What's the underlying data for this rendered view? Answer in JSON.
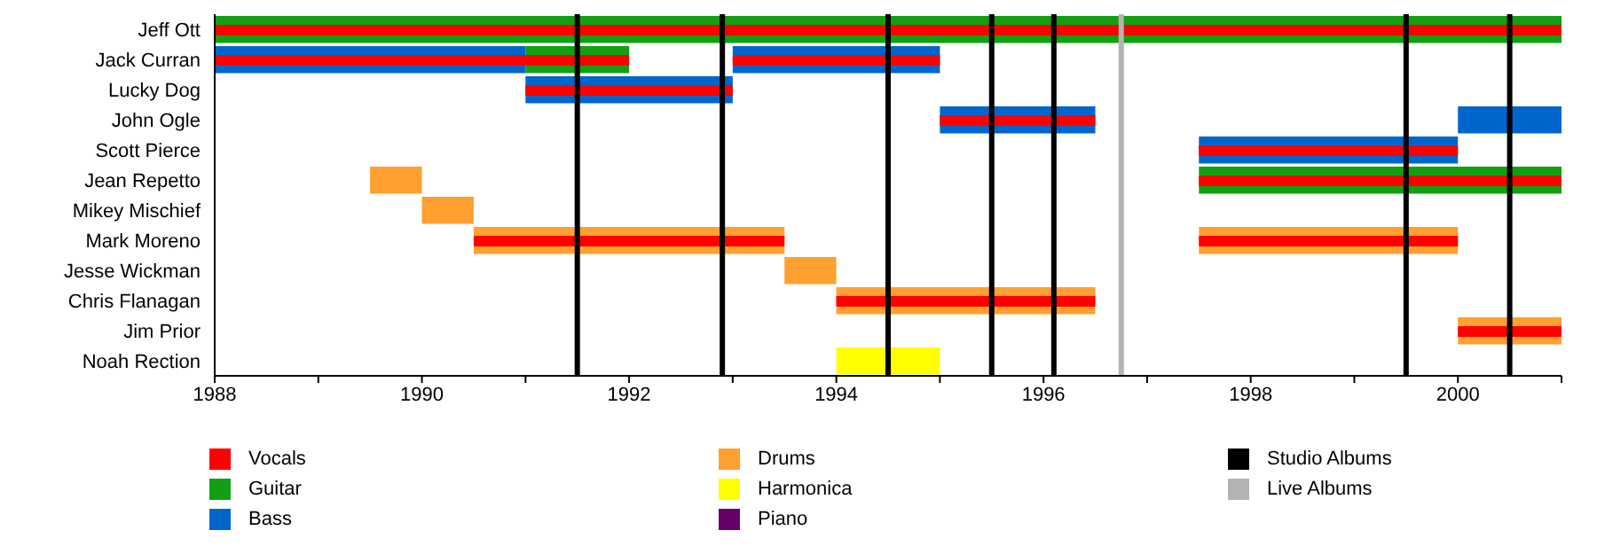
{
  "chart_data": {
    "type": "bar",
    "orientation": "horizontal",
    "categories": [
      "Jeff Ott",
      "Jack Curran",
      "Lucky Dog",
      "John Ogle",
      "Scott Pierce",
      "Jean Repetto",
      "Mikey Mischief",
      "Mark Moreno",
      "Jesse Wickman",
      "Chris Flanagan",
      "Jim Prior",
      "Noah Rection"
    ],
    "series": [
      {
        "name": "Vocals",
        "color": "#ff0000",
        "base": [
          1988,
          1988,
          1991,
          1995,
          1997.5,
          1997.5,
          null,
          1990.5,
          null,
          1994,
          2000,
          null
        ],
        "values": [
          13,
          4,
          2,
          1.5,
          2.5,
          3.5,
          null,
          3,
          null,
          2.5,
          1,
          null
        ]
      },
      {
        "name": "Guitar",
        "color": "#12a012",
        "base": [
          1988,
          1991,
          null,
          null,
          null,
          1997.5,
          null,
          null,
          null,
          null,
          null,
          null
        ],
        "values": [
          13,
          1,
          null,
          null,
          null,
          3.5,
          null,
          null,
          null,
          null,
          null,
          null
        ]
      },
      {
        "name": "Bass",
        "color": "#0066cc",
        "base": [
          null,
          1988,
          1991,
          1995,
          1997.5,
          null,
          null,
          null,
          null,
          null,
          null,
          null
        ],
        "values": [
          null,
          3,
          2,
          1.5,
          2.5,
          null,
          null,
          null,
          null,
          null,
          null,
          null
        ]
      },
      {
        "name": "Drums",
        "color": "#ffa030",
        "base": [
          null,
          null,
          null,
          null,
          null,
          1989.5,
          1990,
          1990.5,
          1993.5,
          1994,
          2000,
          null
        ],
        "values": [
          null,
          null,
          null,
          null,
          null,
          0.5,
          0.5,
          3,
          0.5,
          2.5,
          1,
          null
        ]
      },
      {
        "name": "Harmonica",
        "color": "#ffff00",
        "base": [
          null,
          null,
          null,
          null,
          null,
          null,
          null,
          null,
          null,
          null,
          null,
          1994
        ],
        "values": [
          null,
          null,
          null,
          null,
          null,
          null,
          null,
          null,
          null,
          null,
          null,
          1
        ]
      },
      {
        "name": "Piano",
        "color": "#660066",
        "base": [
          null,
          null,
          null,
          null,
          null,
          null,
          null,
          null,
          null,
          null,
          null,
          null
        ],
        "values": [
          null,
          null,
          null,
          null,
          null,
          null,
          null,
          null,
          null,
          null,
          null,
          null
        ]
      },
      {
        "color": "#ff0000",
        "base": [
          null,
          1993,
          null,
          null,
          null,
          null,
          null,
          1997.5,
          null,
          null,
          null,
          null
        ],
        "values": [
          null,
          2,
          null,
          null,
          null,
          null,
          null,
          2.5,
          null,
          null,
          null,
          null
        ]
      },
      {
        "color": "#0066cc",
        "base": [
          null,
          1993,
          null,
          2000,
          null,
          null,
          null,
          null,
          null,
          null,
          null,
          null
        ],
        "values": [
          null,
          2,
          null,
          1,
          null,
          null,
          null,
          null,
          null,
          null,
          null,
          null
        ]
      },
      {
        "color": "#ffa030",
        "base": [
          null,
          null,
          null,
          null,
          null,
          null,
          null,
          1997.5,
          null,
          null,
          null,
          null
        ],
        "values": [
          null,
          null,
          null,
          null,
          null,
          null,
          null,
          2.5,
          null,
          null,
          null,
          null
        ]
      }
    ],
    "xlim": [
      1988,
      2001
    ],
    "xticks": [
      1988,
      {
        "value": 1989,
        "label": null
      },
      1990,
      {
        "value": 1991,
        "label": null
      },
      1992,
      {
        "value": 1993,
        "label": null
      },
      1994,
      {
        "value": 1995,
        "label": null
      },
      1996,
      {
        "value": 1997,
        "label": null
      },
      1998,
      {
        "value": 1999,
        "label": null
      },
      2000,
      {
        "value": 2001,
        "label": null
      }
    ],
    "ref_lines": [
      {
        "axis": "x",
        "value": 1991.5,
        "label": "Studio Albums",
        "color": "#000000"
      },
      {
        "axis": "x",
        "value": 1992.9,
        "color": "#000000"
      },
      {
        "axis": "x",
        "value": 1994.5,
        "color": "#000000"
      },
      {
        "axis": "x",
        "value": 1995.5,
        "color": "#000000"
      },
      {
        "axis": "x",
        "value": 1996.1,
        "color": "#000000"
      },
      {
        "axis": "x",
        "value": 1996.75,
        "label": "Live Albums",
        "color": "#b3b3b3"
      },
      {
        "axis": "x",
        "value": 1999.5,
        "color": "#000000"
      },
      {
        "axis": "x",
        "value": 2000.5,
        "color": "#000000"
      }
    ],
    "grid": false,
    "legend": "bottom"
  }
}
